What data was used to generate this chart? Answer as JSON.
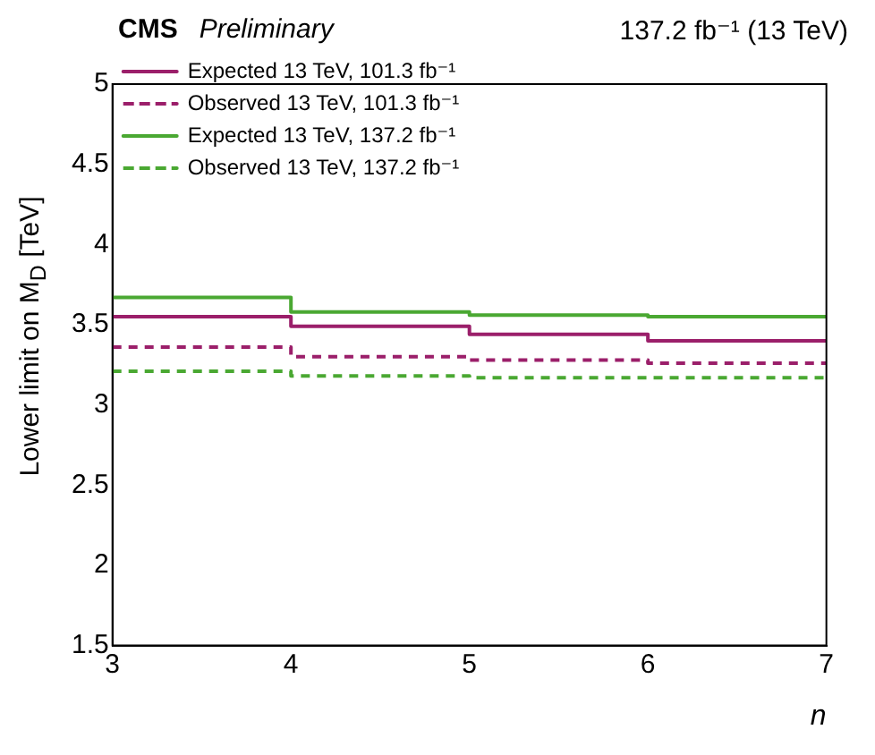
{
  "chart_data": {
    "type": "step",
    "title": "CMS",
    "subtitle": "Preliminary",
    "annotations": [
      "137.2 fb⁻¹ (13 TeV)"
    ],
    "xlabel": "n",
    "ylabel": "Lower limit on M$_{D}$ [TeV]",
    "x": [
      3,
      4,
      5,
      6,
      7
    ],
    "series": [
      {
        "name": "Expected 13 TeV, 101.3 fb⁻¹",
        "color": "#9b1f6a",
        "line_style": "solid",
        "values": [
          3.55,
          3.49,
          3.44,
          3.4,
          3.4
        ]
      },
      {
        "name": "Observed 13 TeV, 101.3 fb⁻¹",
        "color": "#9b1f6a",
        "line_style": "dashed",
        "values": [
          3.36,
          3.3,
          3.28,
          3.26,
          3.26
        ]
      },
      {
        "name": "Expected 13 TeV, 137.2 fb⁻¹",
        "color": "#4aa832",
        "line_style": "solid",
        "values": [
          3.67,
          3.58,
          3.56,
          3.55,
          3.55
        ]
      },
      {
        "name": "Observed 13 TeV, 137.2 fb⁻¹",
        "color": "#4aa832",
        "line_style": "dashed",
        "values": [
          3.21,
          3.18,
          3.17,
          3.17,
          3.17
        ]
      }
    ],
    "xlim": [
      3,
      7
    ],
    "xticks": [
      3,
      4,
      5,
      6,
      7
    ],
    "ylim": [
      1.5,
      5
    ],
    "yticks": [
      1.5,
      2,
      2.5,
      3,
      3.5,
      4,
      4.5,
      5
    ],
    "grid": false,
    "legend": "top left",
    "marker": "none"
  }
}
